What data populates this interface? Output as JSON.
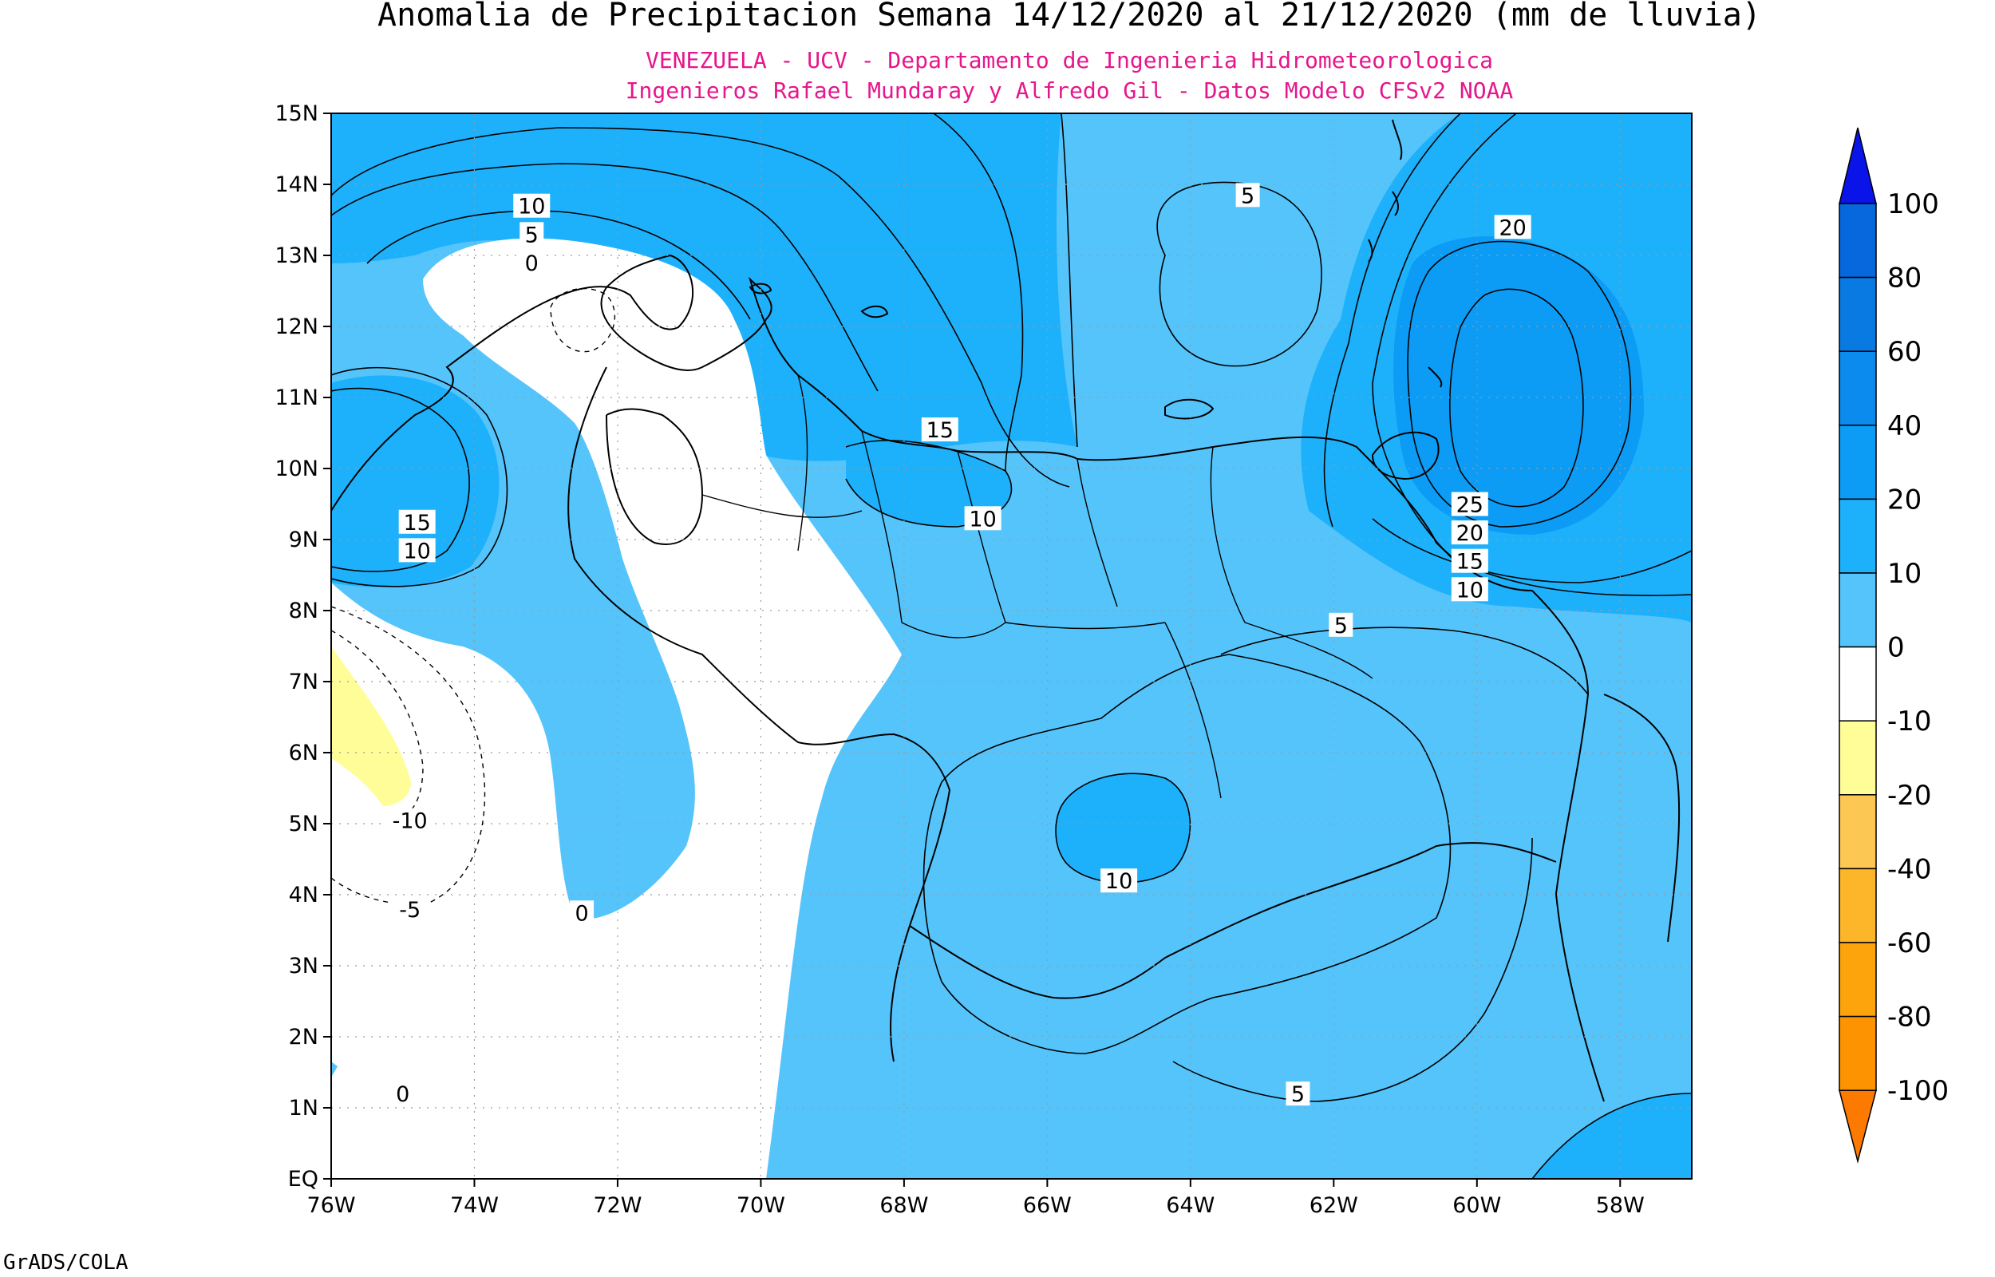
{
  "title": "Anomalia de Precipitacion Semana 14/12/2020 al 21/12/2020 (mm de lluvia)",
  "subtitle_lines": [
    "VENEZUELA - UCV - Departamento de Ingenieria Hidrometeorologica",
    "Ingenieros Rafael Mundaray y Alfredo Gil - Datos Modelo CFSv2 NOAA"
  ],
  "credit": "GrADS/COLA",
  "colors": {
    "title": "#000000",
    "subtitle": "#e6168c",
    "band_0_10": "#55c4fb",
    "band_10_20": "#1eb1fb",
    "band_20_40": "#0c9cf5",
    "band_40_60": "#0b8bed",
    "band_60_80": "#0a7ae3",
    "band_80_100": "#0767dc",
    "band_gt_100": "#0a14e8",
    "band_neg10_0": "#ffffff",
    "band_neg20_neg10": "#fefd98",
    "band_neg40_neg20": "#fdc753",
    "band_neg60_neg40": "#fdb52a",
    "band_neg80_neg60": "#fda40c",
    "band_neg100_neg80": "#fd9300",
    "band_lt_neg100": "#fd7a00",
    "contour": "#000000",
    "coast": "#000000"
  },
  "chart_data": {
    "type": "heatmap",
    "map_extent": {
      "lon": [
        -76,
        -57
      ],
      "lat": [
        0,
        15
      ]
    },
    "units": "mm de lluvia",
    "lon_ticks": [
      "76W",
      "74W",
      "72W",
      "70W",
      "68W",
      "66W",
      "64W",
      "62W",
      "60W",
      "58W"
    ],
    "lon_values": [
      -76,
      -74,
      -72,
      -70,
      -68,
      -66,
      -64,
      -62,
      -60,
      -58
    ],
    "lat_ticks": [
      "EQ",
      "1N",
      "2N",
      "3N",
      "4N",
      "5N",
      "6N",
      "7N",
      "8N",
      "9N",
      "10N",
      "11N",
      "12N",
      "13N",
      "14N",
      "15N"
    ],
    "lat_values": [
      0,
      1,
      2,
      3,
      4,
      5,
      6,
      7,
      8,
      9,
      10,
      11,
      12,
      13,
      14,
      15
    ],
    "colorbar_levels": [
      "100",
      "80",
      "60",
      "40",
      "20",
      "10",
      "0",
      "-10",
      "-20",
      "-40",
      "-60",
      "-80",
      "-100"
    ],
    "contour_labels": [
      {
        "text": "10",
        "lon": -73.2,
        "lat": 13.7
      },
      {
        "text": "5",
        "lon": -73.2,
        "lat": 13.3
      },
      {
        "text": "0",
        "lon": -73.2,
        "lat": 12.9
      },
      {
        "text": "5",
        "lon": -63.2,
        "lat": 13.85
      },
      {
        "text": "20",
        "lon": -59.5,
        "lat": 13.4
      },
      {
        "text": "15",
        "lon": -67.5,
        "lat": 10.55
      },
      {
        "text": "10",
        "lon": -66.9,
        "lat": 9.3
      },
      {
        "text": "15",
        "lon": -74.8,
        "lat": 9.25
      },
      {
        "text": "10",
        "lon": -74.8,
        "lat": 8.85
      },
      {
        "text": "25",
        "lon": -60.1,
        "lat": 9.5
      },
      {
        "text": "20",
        "lon": -60.1,
        "lat": 9.1
      },
      {
        "text": "15",
        "lon": -60.1,
        "lat": 8.7
      },
      {
        "text": "10",
        "lon": -60.1,
        "lat": 8.3
      },
      {
        "text": "5",
        "lon": -61.9,
        "lat": 7.8
      },
      {
        "text": "-10",
        "lon": -74.9,
        "lat": 5.05
      },
      {
        "text": "-5",
        "lon": -74.9,
        "lat": 3.8
      },
      {
        "text": "0",
        "lon": -72.5,
        "lat": 3.75
      },
      {
        "text": "10",
        "lon": -65.0,
        "lat": 4.2
      },
      {
        "text": "0",
        "lon": -75.0,
        "lat": 1.2
      },
      {
        "text": "5",
        "lon": -62.5,
        "lat": 1.2
      }
    ]
  }
}
